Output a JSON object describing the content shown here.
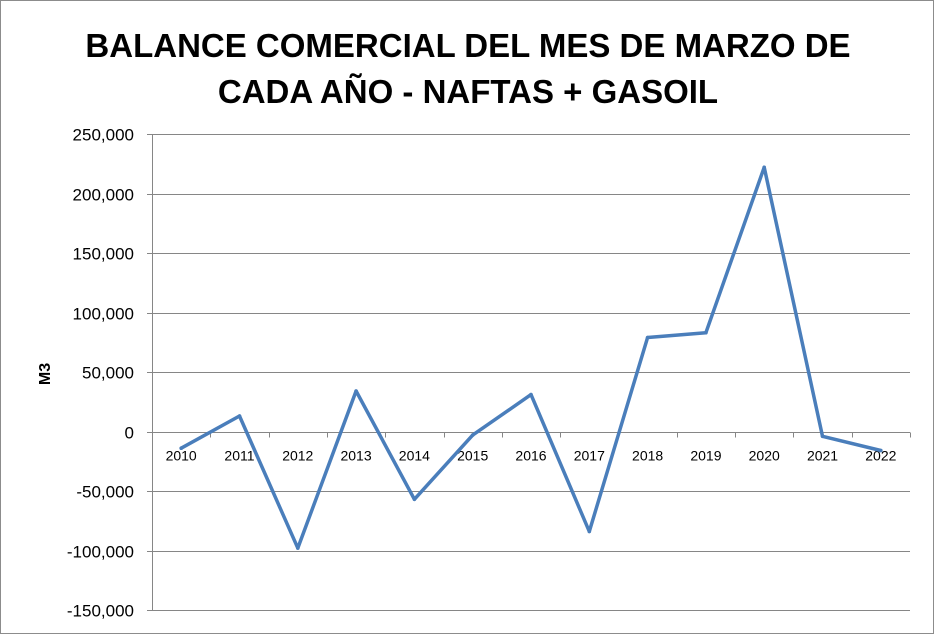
{
  "chart_data": {
    "type": "line",
    "title": "BALANCE COMERCIAL DEL MES DE MARZO DE CADA AÑO - NAFTAS + GASOIL",
    "title_lines": [
      "BALANCE COMERCIAL DEL MES DE MARZO DE",
      "CADA AÑO - NAFTAS + GASOIL"
    ],
    "xlabel": "",
    "ylabel": "M3",
    "categories": [
      "2010",
      "2011",
      "2012",
      "2013",
      "2014",
      "2015",
      "2016",
      "2017",
      "2018",
      "2019",
      "2020",
      "2021",
      "2022"
    ],
    "series": [
      {
        "values": [
          -14000,
          13000,
          -98000,
          34000,
          -57000,
          -3000,
          31000,
          -84000,
          79000,
          83000,
          222000,
          -4000,
          -16000
        ],
        "color": "#4a7ebb"
      }
    ],
    "ylim": [
      -150000,
      250000
    ],
    "yticks": [
      250000,
      200000,
      150000,
      100000,
      50000,
      0,
      -50000,
      -100000,
      -150000
    ],
    "ytick_labels": [
      "250,000",
      "200,000",
      "150,000",
      "100,000",
      "50,000",
      "0",
      "-50,000",
      "-100,000",
      "-150,000"
    ],
    "grid": true,
    "legend": false
  }
}
